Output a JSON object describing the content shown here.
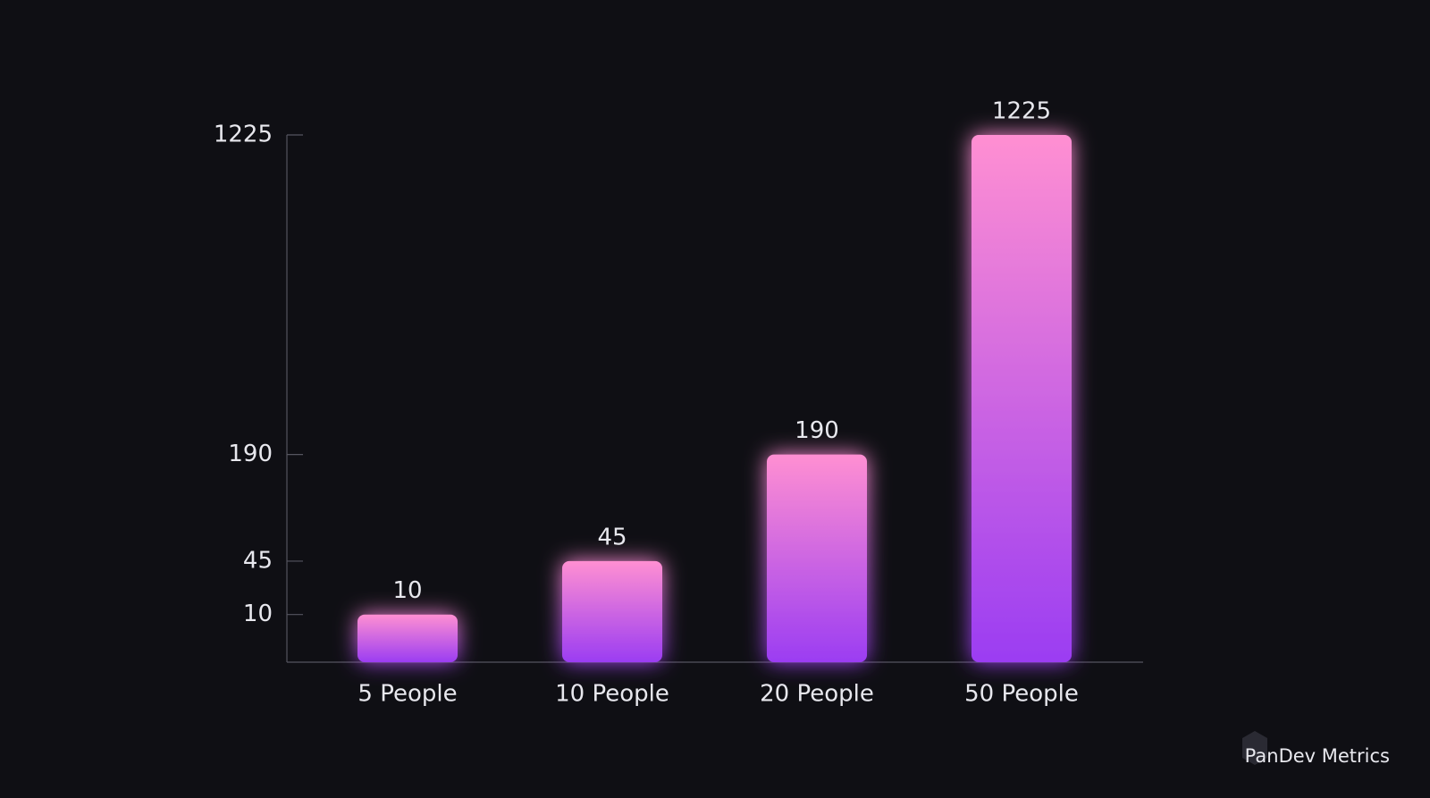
{
  "chart_data": {
    "type": "bar",
    "categories": [
      "5 People",
      "10 People",
      "20 People",
      "50 People"
    ],
    "values": [
      10,
      45,
      190,
      1225
    ],
    "color": [
      "#ff8fd2",
      "#9b3df2"
    ],
    "ylim": [
      0,
      1225
    ],
    "yticks": [
      10,
      45,
      190,
      1225
    ],
    "yscale": "sqrt",
    "grid": false
  },
  "watermark": "PanDev Metrics"
}
